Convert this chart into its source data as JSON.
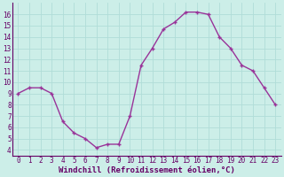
{
  "x": [
    0,
    1,
    2,
    3,
    4,
    5,
    6,
    7,
    8,
    9,
    10,
    11,
    12,
    13,
    14,
    15,
    16,
    17,
    18,
    19,
    20,
    21,
    22,
    23
  ],
  "y": [
    9.0,
    9.5,
    9.5,
    9.0,
    6.5,
    5.5,
    5.0,
    4.2,
    4.5,
    4.5,
    7.0,
    11.5,
    13.0,
    14.7,
    15.3,
    16.2,
    16.2,
    16.0,
    14.0,
    13.0,
    11.5,
    11.0,
    9.5,
    8.0
  ],
  "line_color": "#993399",
  "marker": "+",
  "marker_color": "#993399",
  "bg_color": "#cceee8",
  "grid_color": "#b0ddd8",
  "xlabel": "Windchill (Refroidissement éolien,°C)",
  "xlabel_color": "#660066",
  "tick_color": "#660066",
  "ylim": [
    3.5,
    17.0
  ],
  "xlim": [
    -0.5,
    23.5
  ],
  "yticks": [
    4,
    5,
    6,
    7,
    8,
    9,
    10,
    11,
    12,
    13,
    14,
    15,
    16
  ],
  "xticks": [
    0,
    1,
    2,
    3,
    4,
    5,
    6,
    7,
    8,
    9,
    10,
    11,
    12,
    13,
    14,
    15,
    16,
    17,
    18,
    19,
    20,
    21,
    22,
    23
  ],
  "linewidth": 1.0,
  "markersize": 3.5,
  "xlabel_fontsize": 6.5,
  "tick_fontsize": 5.5
}
